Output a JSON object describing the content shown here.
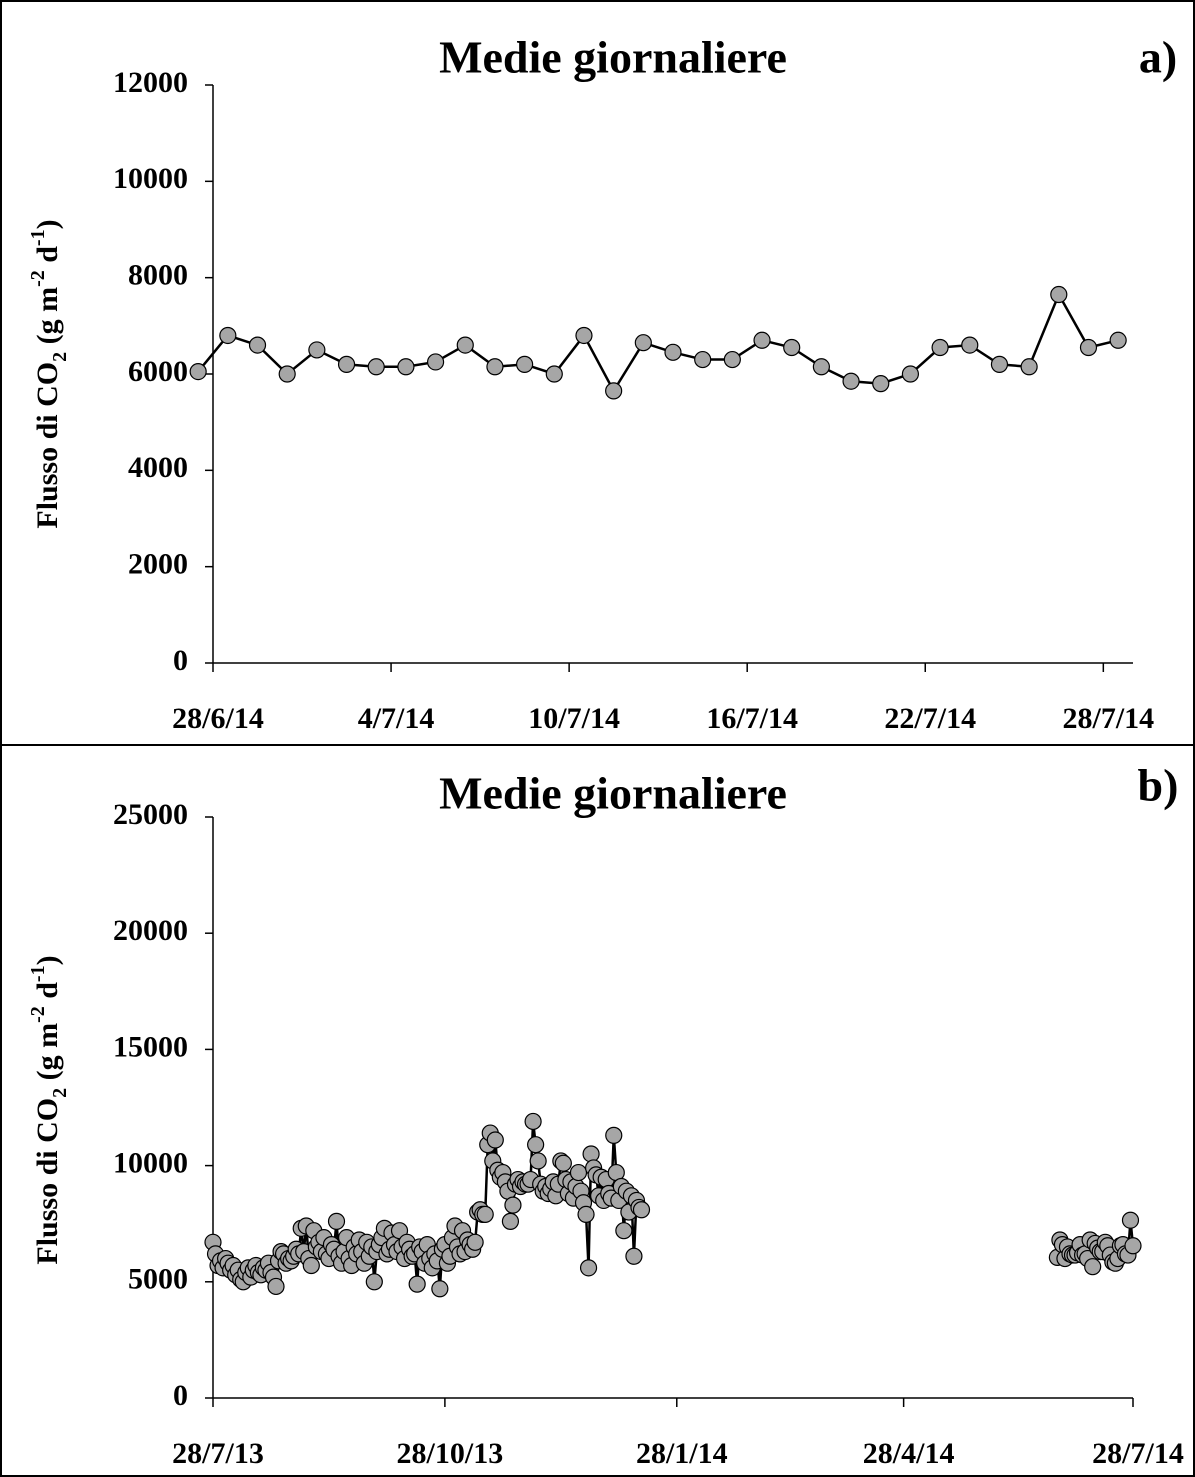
{
  "chart_data": [
    {
      "type": "line",
      "title": "Medie giornaliere",
      "panel_label": "a)",
      "ylabel": [
        "Flusso di CO",
        "2",
        " (g m",
        "-2",
        " d",
        "-1",
        ")"
      ],
      "x": [
        -0.5,
        0.5,
        1.5,
        2.5,
        3.5,
        4.5,
        5.5,
        6.5,
        7.5,
        8.5,
        9.5,
        10.5,
        11.5,
        12.5,
        13.5,
        14.5,
        15.5,
        16.5,
        17.5,
        18.5,
        19.5,
        20.5,
        21.5,
        22.5,
        23.5,
        24.5,
        25.5,
        26.5,
        27.5,
        28.5,
        29.5,
        30.5
      ],
      "values": [
        6050,
        6800,
        6600,
        6000,
        6500,
        6200,
        6150,
        6150,
        6250,
        6600,
        6150,
        6200,
        6000,
        6800,
        5650,
        6650,
        6450,
        6300,
        6300,
        6700,
        6550,
        6150,
        5850,
        5800,
        6000,
        6550,
        6600,
        6200,
        6150,
        7650,
        6550,
        6700
      ],
      "line_color": "#000000",
      "marker_color": "#a6a6a6",
      "xlim": [
        0,
        31
      ],
      "xticks": [
        {
          "value": 0,
          "label": "28/6/14"
        },
        {
          "value": 6,
          "label": "4/7/14"
        },
        {
          "value": 12,
          "label": "10/7/14"
        },
        {
          "value": 18,
          "label": "16/7/14"
        },
        {
          "value": 24,
          "label": "22/7/14"
        },
        {
          "value": 30,
          "label": "28/7/14"
        }
      ],
      "ylim": [
        0,
        12000
      ],
      "yticks": [
        0,
        2000,
        4000,
        6000,
        8000,
        10000,
        12000
      ],
      "grid": false
    },
    {
      "type": "line",
      "title": "Medie giornaliere",
      "panel_label": "b)",
      "ylabel": [
        "Flusso di CO",
        "2",
        " (g m",
        "-2",
        " d",
        "-1",
        ")"
      ],
      "x": [
        0,
        1,
        2,
        3,
        4,
        5,
        6,
        7,
        8,
        9,
        10,
        11,
        12,
        13,
        14,
        15,
        16,
        17,
        18,
        19,
        20,
        21,
        22,
        23,
        24,
        25,
        26,
        27,
        28,
        29,
        30,
        31,
        32,
        33,
        34,
        35,
        36,
        37,
        38,
        39,
        40,
        41,
        42,
        43,
        44,
        45,
        46,
        47,
        48,
        49,
        50,
        51,
        52,
        53,
        54,
        55,
        56,
        57,
        58,
        59,
        60,
        61,
        62,
        63,
        64,
        65,
        66,
        67,
        68,
        69,
        70,
        71,
        72,
        73,
        74,
        75,
        76,
        77,
        78,
        79,
        80,
        81,
        82,
        83,
        84,
        85,
        86,
        87,
        88,
        89,
        90,
        91,
        92,
        93,
        94,
        95,
        96,
        97,
        98,
        99,
        100,
        101,
        102,
        103,
        104,
        105,
        106,
        107,
        108,
        109,
        110,
        111,
        112,
        113,
        114,
        115,
        116,
        117,
        118,
        119,
        120,
        121,
        122,
        123,
        124,
        125,
        126,
        127,
        128,
        129,
        130,
        131,
        132,
        133,
        134,
        135,
        136,
        137,
        138,
        139,
        140,
        141,
        142,
        143,
        144,
        145,
        146,
        147,
        148,
        149,
        150,
        151,
        152,
        153,
        154,
        155,
        156,
        157,
        158,
        159,
        160,
        161,
        162,
        163,
        164,
        165,
        166,
        167,
        168,
        169,
        170,
        250,
        335,
        336,
        337,
        338,
        339,
        340,
        341,
        342,
        343,
        344,
        345,
        346,
        347,
        348,
        349,
        350,
        351,
        352,
        353,
        354,
        355,
        356,
        357,
        358,
        359,
        360,
        361,
        362,
        363,
        364,
        365
      ],
      "values": [
        6700,
        6200,
        5700,
        5900,
        5600,
        6000,
        5800,
        5500,
        5700,
        5300,
        5500,
        5100,
        5000,
        5400,
        5600,
        5200,
        5500,
        5700,
        5400,
        5300,
        5600,
        5500,
        5800,
        5400,
        5200,
        4800,
        5900,
        6300,
        6200,
        5800,
        6000,
        5900,
        6100,
        6400,
        6200,
        7300,
        6300,
        7400,
        6000,
        5700,
        7200,
        6500,
        6700,
        6300,
        6900,
        6200,
        6000,
        6600,
        6400,
        7600,
        6100,
        5800,
        6300,
        6900,
        6000,
        5700,
        6500,
        6200,
        6800,
        6300,
        5800,
        6700,
        6100,
        6500,
        5000,
        6300,
        6600,
        6900,
        7300,
        6200,
        6400,
        7100,
        6600,
        6300,
        7200,
        6500,
        6000,
        6700,
        6400,
        6100,
        6200,
        4900,
        6500,
        6300,
        5800,
        6600,
        6000,
        5600,
        6200,
        5900,
        4700,
        6400,
        6600,
        5800,
        6100,
        6900,
        7400,
        6500,
        6200,
        7200,
        6300,
        6800,
        6600,
        6400,
        6700,
        8000,
        8100,
        7900,
        7900,
        10900,
        11400,
        10200,
        11100,
        9800,
        9500,
        9700,
        9300,
        8900,
        7600,
        8300,
        9200,
        9400,
        9100,
        9300,
        9200,
        9200,
        9400,
        11900,
        10900,
        10200,
        9200,
        8900,
        9100,
        8800,
        9000,
        9300,
        8700,
        9200,
        10200,
        10100,
        9400,
        8800,
        9300,
        8600,
        9100,
        9700,
        8900,
        8400,
        7900,
        5600,
        10500,
        9900,
        9600,
        8700,
        9500,
        8500,
        9400,
        8800,
        8600,
        11300,
        9700,
        8500,
        9100,
        7200,
        8900,
        8000,
        8700,
        6100,
        8500,
        8200,
        8100,
        null,
        6050,
        6800,
        6600,
        6000,
        6500,
        6200,
        6150,
        6150,
        6250,
        6600,
        6150,
        6200,
        6000,
        6800,
        5650,
        6650,
        6450,
        6300,
        6300,
        6700,
        6550,
        6150,
        5850,
        5800,
        6000,
        6550,
        6600,
        6200,
        6150,
        7650,
        6550
      ],
      "line_color": "#000000",
      "marker_color": "#a6a6a6",
      "xlim": [
        0,
        365
      ],
      "xticks": [
        {
          "value": 0,
          "label": "28/7/13"
        },
        {
          "value": 92,
          "label": "28/10/13"
        },
        {
          "value": 184,
          "label": "28/1/14"
        },
        {
          "value": 274,
          "label": "28/4/14"
        },
        {
          "value": 365,
          "label": "28/7/14"
        }
      ],
      "ylim": [
        0,
        25000
      ],
      "yticks": [
        0,
        5000,
        10000,
        15000,
        20000,
        25000
      ],
      "grid": false
    }
  ]
}
